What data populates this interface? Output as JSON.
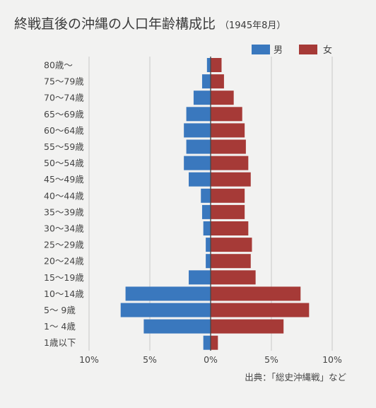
{
  "title": "終戦直後の沖縄の人口年齢構成比",
  "subtitle": "（1945年8月）",
  "source": "出典：「総史沖縄戦」など",
  "chart_data": {
    "type": "bar",
    "orientation": "horizontal",
    "layout": "population-pyramid",
    "title": "終戦直後の沖縄の人口年齢構成比（1945年8月）",
    "categories": [
      "80歳〜",
      "75〜79歳",
      "70〜74歳",
      "65〜69歳",
      "60〜64歳",
      "55〜59歳",
      "50〜54歳",
      "45〜49歳",
      "40〜44歳",
      "35〜39歳",
      "30〜34歳",
      "25〜29歳",
      "20〜24歳",
      "15〜19歳",
      "10〜14歳",
      "5〜 9歳",
      "1〜 4歳",
      "1歳以下"
    ],
    "series": [
      {
        "name": "男",
        "color": "#3a78be",
        "values": [
          0.3,
          0.7,
          1.4,
          2.0,
          2.2,
          2.0,
          2.2,
          1.8,
          0.8,
          0.7,
          0.6,
          0.4,
          0.4,
          1.8,
          7.0,
          7.4,
          5.5,
          0.6
        ]
      },
      {
        "name": "女",
        "color": "#a63a37",
        "values": [
          0.9,
          1.1,
          1.9,
          2.6,
          2.8,
          2.9,
          3.1,
          3.3,
          2.8,
          2.8,
          3.1,
          3.4,
          3.3,
          3.7,
          7.4,
          8.1,
          6.0,
          0.6
        ]
      }
    ],
    "x_ticks": [
      "10%",
      "5%",
      "0%",
      "5%",
      "10%"
    ],
    "xlim": [
      -10,
      10
    ],
    "legend": "top-right",
    "grid": true
  }
}
